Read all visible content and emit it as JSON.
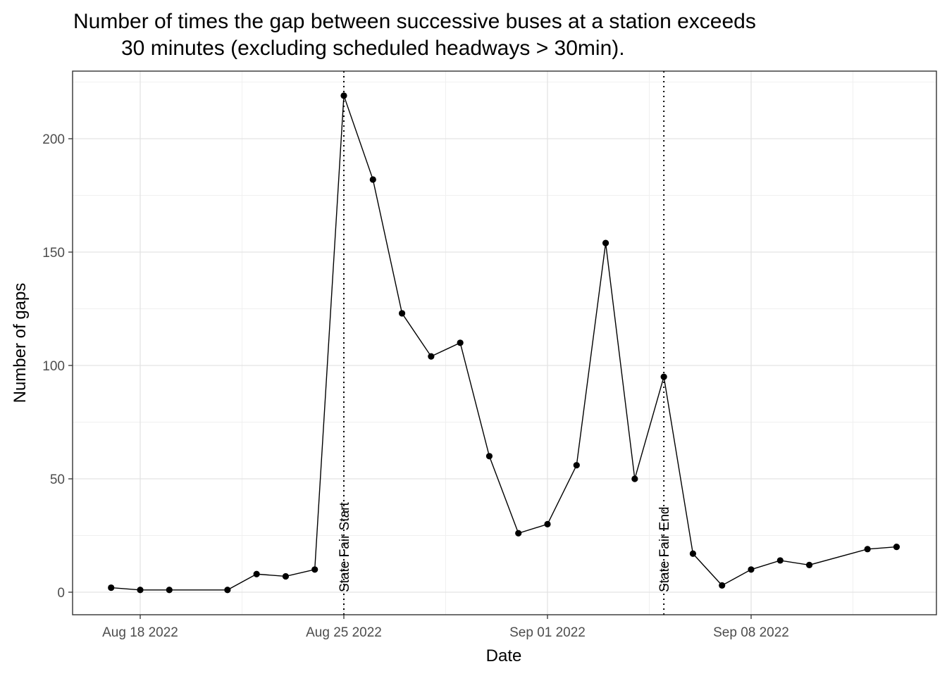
{
  "chart_data": {
    "type": "line",
    "title_lines": [
      "Number of times the gap between successive buses at a station exceeds",
      "30 minutes (excluding scheduled headways > 30min)."
    ],
    "xlabel": "Date",
    "ylabel": "Number of gaps",
    "x_ticks": [
      {
        "date": "2022-08-18",
        "label": "Aug 18 2022"
      },
      {
        "date": "2022-08-25",
        "label": "Aug 25 2022"
      },
      {
        "date": "2022-09-01",
        "label": "Sep 01 2022"
      },
      {
        "date": "2022-09-08",
        "label": "Sep 08 2022"
      }
    ],
    "y_ticks": [
      0,
      50,
      100,
      150,
      200
    ],
    "xlim": [
      "2022-08-15",
      "2022-09-13"
    ],
    "ylim": [
      -10,
      230
    ],
    "grid": true,
    "series": [
      {
        "color": "#000000",
        "points": [
          {
            "x": "2022-08-17",
            "y": 2
          },
          {
            "x": "2022-08-18",
            "y": 1
          },
          {
            "x": "2022-08-19",
            "y": 1
          },
          {
            "x": "2022-08-21",
            "y": 1
          },
          {
            "x": "2022-08-22",
            "y": 8
          },
          {
            "x": "2022-08-23",
            "y": 7
          },
          {
            "x": "2022-08-24",
            "y": 10
          },
          {
            "x": "2022-08-25",
            "y": 219
          },
          {
            "x": "2022-08-26",
            "y": 182
          },
          {
            "x": "2022-08-27",
            "y": 123
          },
          {
            "x": "2022-08-28",
            "y": 104
          },
          {
            "x": "2022-08-29",
            "y": 110
          },
          {
            "x": "2022-08-30",
            "y": 60
          },
          {
            "x": "2022-08-31",
            "y": 26
          },
          {
            "x": "2022-09-01",
            "y": 30
          },
          {
            "x": "2022-09-02",
            "y": 56
          },
          {
            "x": "2022-09-03",
            "y": 154
          },
          {
            "x": "2022-09-04",
            "y": 50
          },
          {
            "x": "2022-09-05",
            "y": 95
          },
          {
            "x": "2022-09-06",
            "y": 17
          },
          {
            "x": "2022-09-07",
            "y": 3
          },
          {
            "x": "2022-09-08",
            "y": 10
          },
          {
            "x": "2022-09-09",
            "y": 14
          },
          {
            "x": "2022-09-10",
            "y": 12
          },
          {
            "x": "2022-09-12",
            "y": 19
          },
          {
            "x": "2022-09-13",
            "y": 20
          }
        ]
      }
    ],
    "annotations": [
      {
        "x": "2022-08-25",
        "label": "State Fair Start",
        "style": "dotted"
      },
      {
        "x": "2022-09-05",
        "label": "State Fair End",
        "style": "dotted"
      }
    ]
  }
}
